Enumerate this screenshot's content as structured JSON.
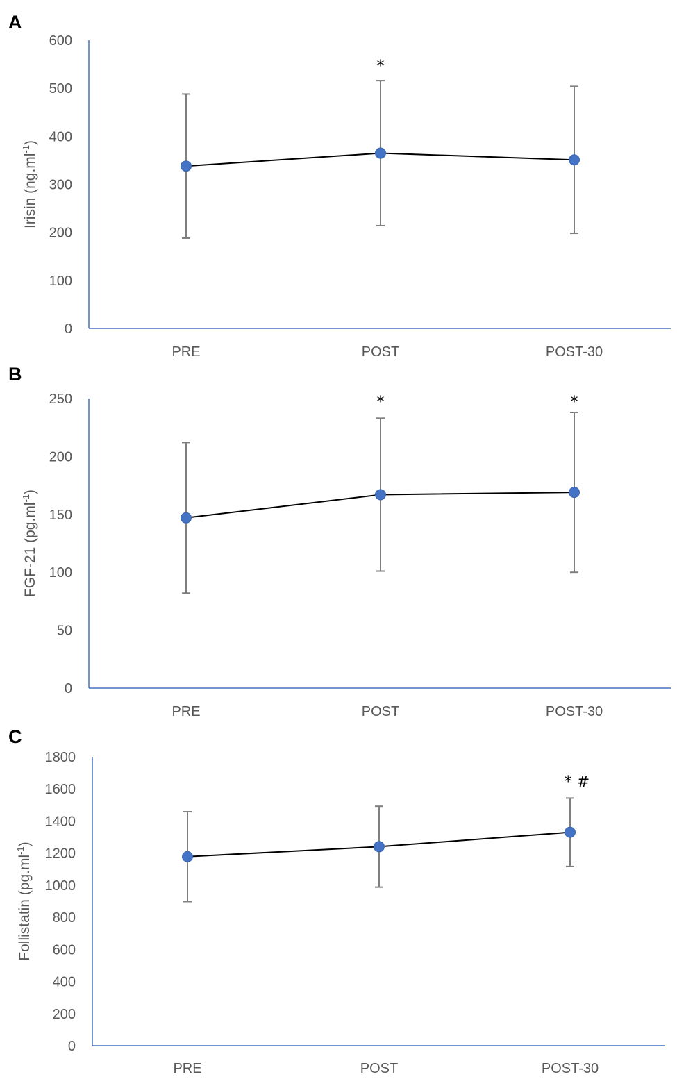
{
  "chart_data": [
    {
      "panel": "A",
      "type": "line",
      "categories": [
        "PRE",
        "POST",
        "POST-30"
      ],
      "series": [
        {
          "name": "Irisin",
          "values": [
            338,
            365,
            351
          ],
          "error": [
            150,
            151,
            153
          ]
        }
      ],
      "ylabel": {
        "main": "Irisin (ng.ml",
        "sup": "-1",
        "close": ")"
      },
      "ylim": [
        0,
        600
      ],
      "yticks": [
        0,
        100,
        200,
        300,
        400,
        500,
        600
      ],
      "annotations": [
        {
          "category": "POST",
          "text": "*"
        }
      ],
      "colors": {
        "marker": "#4472C4",
        "line": "#000000",
        "error": "#7F7F7F",
        "axis": "#4472C4"
      }
    },
    {
      "panel": "B",
      "type": "line",
      "categories": [
        "PRE",
        "POST",
        "POST-30"
      ],
      "series": [
        {
          "name": "FGF-21",
          "values": [
            147,
            167,
            169
          ],
          "error": [
            65,
            66,
            69
          ]
        }
      ],
      "ylabel": {
        "main": "FGF-21 (pg.ml",
        "sup": "-1",
        "close": ")"
      },
      "ylim": [
        0,
        250
      ],
      "yticks": [
        0,
        50,
        100,
        150,
        200,
        250
      ],
      "annotations": [
        {
          "category": "POST",
          "text": "*"
        },
        {
          "category": "POST-30",
          "text": "*"
        }
      ],
      "colors": {
        "marker": "#4472C4",
        "line": "#000000",
        "error": "#7F7F7F",
        "axis": "#4472C4"
      }
    },
    {
      "panel": "C",
      "type": "line",
      "categories": [
        "PRE",
        "POST",
        "POST-30"
      ],
      "series": [
        {
          "name": "Follistatin",
          "values": [
            1178,
            1240,
            1330
          ],
          "error": [
            280,
            252,
            213
          ]
        }
      ],
      "ylabel": {
        "main": "Follistatin (pg.ml",
        "sup": "-1",
        "close": ")"
      },
      "ylim": [
        0,
        1800
      ],
      "yticks": [
        0,
        200,
        400,
        600,
        800,
        1000,
        1200,
        1400,
        1600,
        1800
      ],
      "annotations": [
        {
          "category": "POST-30",
          "text": "* #"
        }
      ],
      "colors": {
        "marker": "#4472C4",
        "line": "#000000",
        "error": "#7F7F7F",
        "axis": "#4472C4"
      }
    }
  ]
}
